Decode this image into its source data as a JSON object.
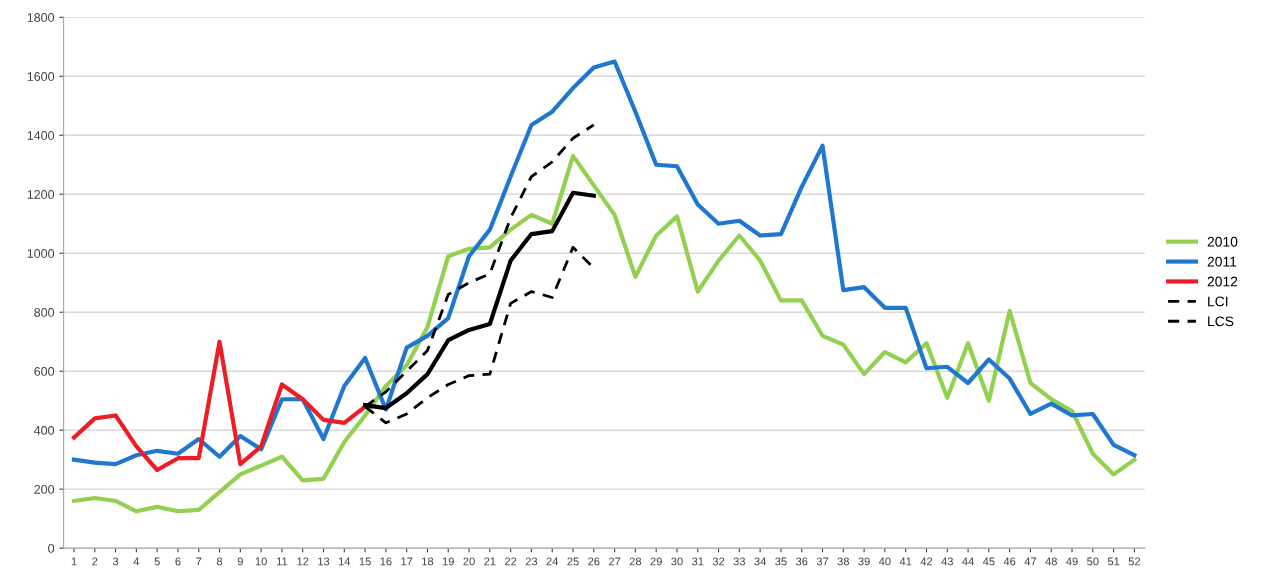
{
  "chart_data": {
    "type": "line",
    "categories": [
      "1",
      "2",
      "3",
      "4",
      "5",
      "6",
      "7",
      "8",
      "9",
      "10",
      "11",
      "12",
      "13",
      "14",
      "15",
      "16",
      "17",
      "18",
      "19",
      "20",
      "21",
      "22",
      "23",
      "24",
      "25",
      "26",
      "27",
      "28",
      "29",
      "30",
      "31",
      "32",
      "33",
      "34",
      "35",
      "36",
      "37",
      "38",
      "39",
      "40",
      "41",
      "42",
      "43",
      "44",
      "45",
      "46",
      "47",
      "48",
      "49",
      "50",
      "51",
      "52"
    ],
    "ylim": [
      0,
      1800
    ],
    "yticks": [
      0,
      200,
      400,
      600,
      800,
      1000,
      1200,
      1400,
      1600,
      1800
    ],
    "grid": "y",
    "legend": "right",
    "marker": "none",
    "series": [
      {
        "name": "2010",
        "color": "#92d050",
        "line_style": "solid",
        "values": [
          160,
          170,
          160,
          125,
          140,
          125,
          130,
          190,
          250,
          280,
          310,
          230,
          235,
          360,
          450,
          550,
          620,
          750,
          990,
          1015,
          1020,
          1080,
          1130,
          1100,
          1330,
          1230,
          1130,
          920,
          1060,
          1125,
          870,
          975,
          1060,
          975,
          840,
          840,
          720,
          690,
          590,
          665,
          630,
          695,
          510,
          695,
          500,
          805,
          560,
          505,
          465,
          320,
          250,
          300
        ]
      },
      {
        "name": "2011",
        "color": "#1f77d0",
        "line_style": "solid",
        "values": [
          300,
          290,
          285,
          315,
          330,
          320,
          370,
          310,
          380,
          335,
          505,
          505,
          370,
          550,
          645,
          470,
          680,
          720,
          780,
          990,
          1080,
          1260,
          1435,
          1480,
          1560,
          1630,
          1650,
          1480,
          1300,
          1295,
          1165,
          1100,
          1110,
          1060,
          1065,
          1225,
          1365,
          875,
          885,
          815,
          815,
          610,
          615,
          560,
          640,
          575,
          455,
          490,
          450,
          455,
          350,
          315
        ]
      },
      {
        "name": "2012",
        "color": "#ee1c25",
        "line_style": "solid",
        "values": [
          375,
          440,
          450,
          345,
          265,
          305,
          305,
          700,
          285,
          345,
          555,
          505,
          435,
          425,
          480,
          null,
          null,
          null,
          null,
          null,
          null,
          null,
          null,
          null,
          null,
          null,
          null,
          null,
          null,
          null,
          null,
          null,
          null,
          null,
          null,
          null,
          null,
          null,
          null,
          null,
          null,
          null,
          null,
          null,
          null,
          null,
          null,
          null,
          null,
          null,
          null,
          null
        ]
      },
      {
        "name": "LCI",
        "color": "#000000",
        "line_style": "dashed",
        "values": [
          null,
          null,
          null,
          null,
          null,
          null,
          null,
          null,
          null,
          null,
          null,
          null,
          null,
          null,
          480,
          425,
          455,
          510,
          555,
          585,
          590,
          830,
          870,
          850,
          1020,
          950,
          null,
          null,
          null,
          null,
          null,
          null,
          null,
          null,
          null,
          null,
          null,
          null,
          null,
          null,
          null,
          null,
          null,
          null,
          null,
          null,
          null,
          null,
          null,
          null,
          null,
          null
        ]
      },
      {
        "name": "LCS",
        "color": "#000000",
        "line_style": "dashed",
        "values": [
          null,
          null,
          null,
          null,
          null,
          null,
          null,
          null,
          null,
          null,
          null,
          null,
          null,
          null,
          480,
          530,
          600,
          670,
          860,
          900,
          930,
          1120,
          1260,
          1310,
          1390,
          1435,
          null,
          null,
          null,
          null,
          null,
          null,
          null,
          null,
          null,
          null,
          null,
          null,
          null,
          null,
          null,
          null,
          null,
          null,
          null,
          null,
          null,
          null,
          null,
          null,
          null,
          null
        ]
      },
      {
        "color": "#000000",
        "line_style": "solid",
        "values": [
          null,
          null,
          null,
          null,
          null,
          null,
          null,
          null,
          null,
          null,
          null,
          null,
          null,
          null,
          485,
          475,
          525,
          590,
          705,
          740,
          760,
          975,
          1065,
          1075,
          1205,
          1195,
          null,
          null,
          null,
          null,
          null,
          null,
          null,
          null,
          null,
          null,
          null,
          null,
          null,
          null,
          null,
          null,
          null,
          null,
          null,
          null,
          null,
          null,
          null,
          null,
          null,
          null
        ]
      }
    ]
  }
}
